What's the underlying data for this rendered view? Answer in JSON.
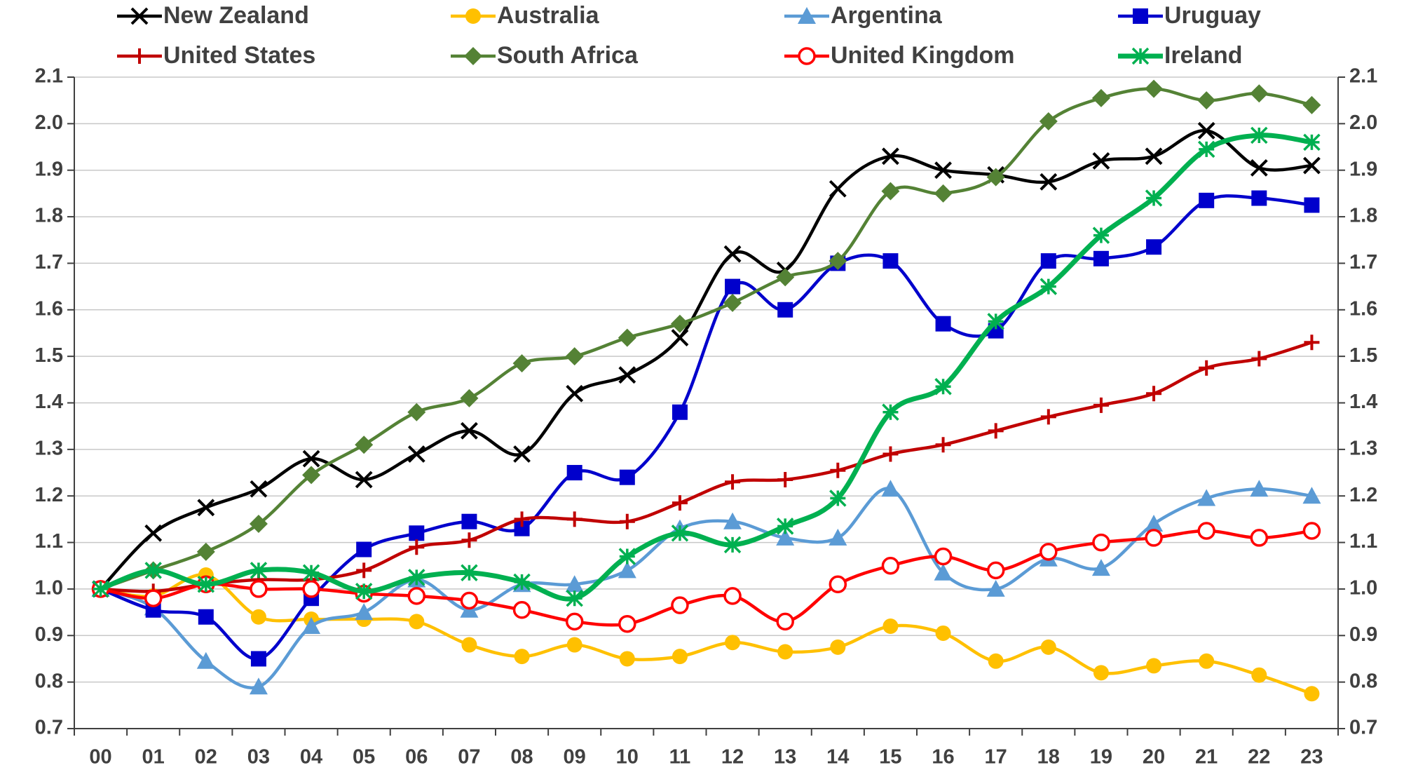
{
  "chart_data": {
    "type": "line",
    "categories": [
      "00",
      "01",
      "02",
      "03",
      "04",
      "05",
      "06",
      "07",
      "08",
      "09",
      "10",
      "11",
      "12",
      "13",
      "14",
      "15",
      "16",
      "17",
      "18",
      "19",
      "20",
      "21",
      "22",
      "23"
    ],
    "series": [
      {
        "name": "New Zealand",
        "color": "#000000",
        "marker": "x",
        "values": [
          1.0,
          1.12,
          1.175,
          1.215,
          1.28,
          1.235,
          1.29,
          1.34,
          1.29,
          1.42,
          1.46,
          1.54,
          1.72,
          1.685,
          1.86,
          1.93,
          1.9,
          1.89,
          1.875,
          1.92,
          1.93,
          1.985,
          1.905,
          1.91
        ]
      },
      {
        "name": "Australia",
        "color": "#FFC000",
        "marker": "dot",
        "values": [
          1.0,
          0.985,
          1.03,
          0.94,
          0.935,
          0.935,
          0.93,
          0.88,
          0.855,
          0.88,
          0.85,
          0.855,
          0.885,
          0.865,
          0.875,
          0.92,
          0.905,
          0.845,
          0.875,
          0.82,
          0.835,
          0.845,
          0.815,
          0.775
        ]
      },
      {
        "name": "Argentina",
        "color": "#5B9BD5",
        "marker": "triangle",
        "values": [
          1.0,
          0.96,
          0.845,
          0.79,
          0.92,
          0.95,
          1.02,
          0.955,
          1.01,
          1.01,
          1.04,
          1.13,
          1.145,
          1.11,
          1.11,
          1.215,
          1.035,
          1.0,
          1.065,
          1.045,
          1.14,
          1.195,
          1.215,
          1.2
        ]
      },
      {
        "name": "Uruguay",
        "color": "#0000CC",
        "marker": "square",
        "values": [
          1.0,
          0.955,
          0.94,
          0.85,
          0.98,
          1.085,
          1.12,
          1.145,
          1.13,
          1.25,
          1.24,
          1.38,
          1.65,
          1.6,
          1.7,
          1.705,
          1.57,
          1.555,
          1.705,
          1.71,
          1.735,
          1.835,
          1.84,
          1.825
        ]
      },
      {
        "name": "United States",
        "color": "#C00000",
        "marker": "plus",
        "values": [
          1.0,
          0.995,
          1.01,
          1.02,
          1.02,
          1.04,
          1.09,
          1.105,
          1.15,
          1.15,
          1.145,
          1.185,
          1.23,
          1.235,
          1.255,
          1.29,
          1.31,
          1.34,
          1.37,
          1.395,
          1.42,
          1.475,
          1.495,
          1.53
        ]
      },
      {
        "name": "South Africa",
        "color": "#548235",
        "marker": "diamond",
        "values": [
          1.0,
          1.04,
          1.08,
          1.14,
          1.245,
          1.31,
          1.38,
          1.41,
          1.485,
          1.5,
          1.54,
          1.57,
          1.615,
          1.67,
          1.705,
          1.855,
          1.85,
          1.885,
          2.005,
          2.055,
          2.075,
          2.05,
          2.065,
          2.04
        ]
      },
      {
        "name": "United Kingdom",
        "color": "#FF0000",
        "marker": "circle",
        "values": [
          1.0,
          0.98,
          1.01,
          1.0,
          1.0,
          0.99,
          0.985,
          0.975,
          0.955,
          0.93,
          0.925,
          0.965,
          0.985,
          0.93,
          1.01,
          1.05,
          1.07,
          1.04,
          1.08,
          1.1,
          1.11,
          1.125,
          1.11,
          1.125
        ]
      },
      {
        "name": "Ireland",
        "color": "#00B050",
        "marker": "star",
        "width": 7,
        "values": [
          1.0,
          1.04,
          1.01,
          1.04,
          1.035,
          0.995,
          1.025,
          1.035,
          1.015,
          0.98,
          1.07,
          1.12,
          1.095,
          1.135,
          1.195,
          1.38,
          1.435,
          1.575,
          1.65,
          1.76,
          1.84,
          1.945,
          1.975,
          1.96
        ]
      }
    ],
    "ylim": [
      0.7,
      2.1
    ],
    "yticks": [
      0.7,
      0.8,
      0.9,
      {
        "value": 1.0,
        "label": "1.0"
      },
      1.1,
      1.2,
      1.3,
      1.4,
      1.5,
      1.6,
      1.7,
      1.8,
      1.9,
      {
        "value": 2.0,
        "label": "2.0"
      },
      2.1
    ],
    "y2lim": [
      0.7,
      2.1
    ],
    "y2ticks": [
      0.7,
      0.8,
      0.9,
      {
        "value": 1.0,
        "label": "1.0"
      },
      1.1,
      1.2,
      1.3,
      1.4,
      1.5,
      1.6,
      1.7,
      1.8,
      1.9,
      {
        "value": 2.0,
        "label": "2.0"
      },
      2.1
    ],
    "grid": true,
    "legend": "top"
  }
}
